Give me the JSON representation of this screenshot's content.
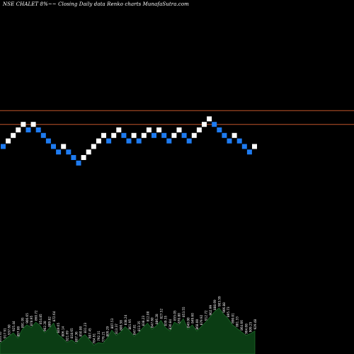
{
  "chart_data": {
    "type": "renko",
    "title": "NSE CHALET 8%~~ Closing Daily data Renko charts MunafaSutra.com",
    "colors": {
      "background": "#000000",
      "up_brick": "#ffffff",
      "down_brick": "#1e7bf0",
      "reference_line": "#c0542a",
      "volume_fill": "#0b3d14",
      "volume_labels": "#ffffff"
    },
    "reference_lines": [
      {
        "level": 13.5
      },
      {
        "level": 11
      }
    ],
    "bricks": [
      {
        "level": 7,
        "dir": "down"
      },
      {
        "level": 8,
        "dir": "up"
      },
      {
        "level": 9,
        "dir": "up"
      },
      {
        "level": 10,
        "dir": "up"
      },
      {
        "level": 11,
        "dir": "up"
      },
      {
        "level": 10,
        "dir": "down"
      },
      {
        "level": 11,
        "dir": "up"
      },
      {
        "level": 10,
        "dir": "down"
      },
      {
        "level": 9,
        "dir": "down"
      },
      {
        "level": 8,
        "dir": "down"
      },
      {
        "level": 7,
        "dir": "down"
      },
      {
        "level": 6,
        "dir": "down"
      },
      {
        "level": 7,
        "dir": "up"
      },
      {
        "level": 6,
        "dir": "down"
      },
      {
        "level": 5,
        "dir": "down"
      },
      {
        "level": 4,
        "dir": "down"
      },
      {
        "level": 5,
        "dir": "up"
      },
      {
        "level": 6,
        "dir": "up"
      },
      {
        "level": 7,
        "dir": "up"
      },
      {
        "level": 8,
        "dir": "up"
      },
      {
        "level": 9,
        "dir": "up"
      },
      {
        "level": 8,
        "dir": "down"
      },
      {
        "level": 9,
        "dir": "up"
      },
      {
        "level": 10,
        "dir": "up"
      },
      {
        "level": 9,
        "dir": "down"
      },
      {
        "level": 8,
        "dir": "down"
      },
      {
        "level": 9,
        "dir": "up"
      },
      {
        "level": 8,
        "dir": "down"
      },
      {
        "level": 9,
        "dir": "up"
      },
      {
        "level": 10,
        "dir": "up"
      },
      {
        "level": 9,
        "dir": "down"
      },
      {
        "level": 10,
        "dir": "up"
      },
      {
        "level": 9,
        "dir": "down"
      },
      {
        "level": 8,
        "dir": "down"
      },
      {
        "level": 9,
        "dir": "up"
      },
      {
        "level": 10,
        "dir": "up"
      },
      {
        "level": 9,
        "dir": "down"
      },
      {
        "level": 8,
        "dir": "down"
      },
      {
        "level": 9,
        "dir": "up"
      },
      {
        "level": 10,
        "dir": "up"
      },
      {
        "level": 11,
        "dir": "up"
      },
      {
        "level": 12,
        "dir": "up"
      },
      {
        "level": 11,
        "dir": "down"
      },
      {
        "level": 10,
        "dir": "down"
      },
      {
        "level": 9,
        "dir": "down"
      },
      {
        "level": 8,
        "dir": "down"
      },
      {
        "level": 9,
        "dir": "up"
      },
      {
        "level": 8,
        "dir": "down"
      },
      {
        "level": 7,
        "dir": "down"
      },
      {
        "level": 6,
        "dir": "down"
      },
      {
        "level": 7,
        "dir": "up"
      }
    ],
    "volume": {
      "values": [
        12,
        16,
        20,
        24,
        18,
        28,
        33,
        30,
        36,
        32,
        24,
        29,
        35,
        22,
        18,
        13,
        16,
        12,
        18,
        22,
        16,
        10,
        13,
        12,
        18,
        27,
        21,
        25,
        31,
        26,
        20,
        24,
        30,
        35,
        28,
        32,
        38,
        30,
        26,
        36,
        33,
        40,
        28,
        33,
        26,
        31,
        36,
        42,
        48,
        52,
        45,
        40,
        33,
        29,
        25,
        21,
        23,
        26
      ],
      "labels": [
        "833.35",
        "917.91",
        "937.60",
        "925.44",
        "897.00",
        "891.95",
        "906.65",
        "878.95",
        "860.72",
        "854.85",
        "902.28",
        "889.82",
        "872.64",
        "849.65",
        "806.14",
        "821.69",
        "818.65",
        "807.36",
        "850.00",
        "831.23",
        "807.45",
        "784.91",
        "792.31",
        "776.21",
        "809.29",
        "807.53",
        "813.37",
        "800.58",
        "838.24",
        "801.95",
        "847.81",
        "813.35",
        "838.23",
        "812.00",
        "847.60",
        "886.28",
        "827.52",
        "839.35",
        "830.84",
        "855.05",
        "870.80",
        "853.55",
        "840.00",
        "849.60",
        "868.00",
        "879.92",
        "912.72",
        "902.99",
        "888.69",
        "903.59",
        "906.88",
        "895.73",
        "890.01",
        "881.33",
        "864.66",
        "904.08",
        "909.25",
        "929.48"
      ]
    }
  }
}
